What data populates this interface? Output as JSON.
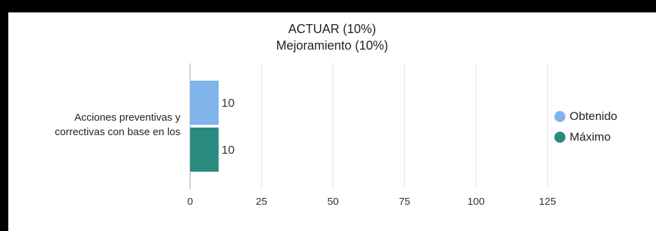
{
  "chart_data": {
    "type": "bar",
    "orientation": "horizontal",
    "title": "ACTUAR (10%)",
    "subtitle": "Mejoramiento (10%)",
    "categories": [
      "Acciones preventivas y correctivas con base en los"
    ],
    "category_lines": [
      "Acciones preventivas y",
      "correctivas con base en los"
    ],
    "series": [
      {
        "name": "Obtenido",
        "values": [
          10
        ],
        "color": "#7fb3ea"
      },
      {
        "name": "Máximo",
        "values": [
          10
        ],
        "color": "#2a8a80"
      }
    ],
    "xlim": [
      0,
      125
    ],
    "xticks": [
      0,
      25,
      50,
      75,
      100,
      125
    ],
    "grid": true,
    "legend_position": "right",
    "data_labels": true
  }
}
